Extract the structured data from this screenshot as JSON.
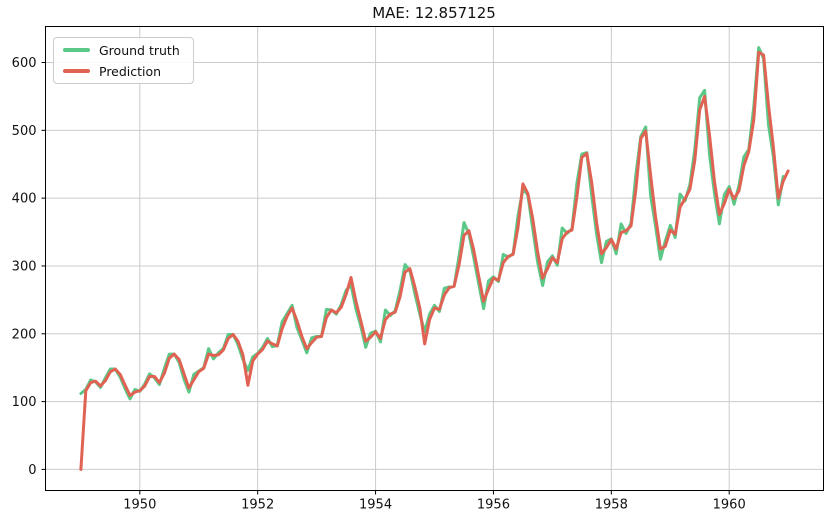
{
  "chart_data": {
    "type": "line",
    "title": "MAE: 12.857125",
    "xlabel": "",
    "ylabel": "",
    "grid": true,
    "x_axis": {
      "start": "1949-01",
      "unit": "months since 1949-01",
      "tick_positions_months": [
        12,
        36,
        60,
        84,
        108,
        132
      ],
      "tick_labels": [
        "1950",
        "1952",
        "1954",
        "1956",
        "1958",
        "1960"
      ],
      "xlim_months": [
        -7.2,
        151.2
      ]
    },
    "y_axis": {
      "ticks": [
        0,
        100,
        200,
        300,
        400,
        500,
        600
      ],
      "tick_labels": [
        "0",
        "100",
        "200",
        "300",
        "400",
        "500",
        "600"
      ],
      "ylim": [
        -31.1,
        653.1
      ]
    },
    "legend": {
      "position": "upper-left",
      "entries": [
        "Ground truth",
        "Prediction"
      ]
    },
    "colors": {
      "ground_truth": "#5cc887",
      "prediction": "#e06253",
      "grid": "#cbcbcb",
      "spine": "#000000",
      "text": "#111111"
    },
    "series": [
      {
        "name": "Ground truth",
        "color": "#5cc887",
        "start_month": 0,
        "values": [
          112,
          118,
          132,
          129,
          121,
          135,
          148,
          148,
          136,
          119,
          104,
          118,
          115,
          126,
          141,
          135,
          125,
          149,
          170,
          170,
          158,
          133,
          114,
          140,
          145,
          150,
          178,
          163,
          172,
          178,
          199,
          199,
          184,
          162,
          146,
          166,
          171,
          180,
          193,
          181,
          183,
          218,
          230,
          242,
          209,
          191,
          172,
          194,
          196,
          196,
          236,
          235,
          229,
          243,
          264,
          272,
          237,
          211,
          180,
          201,
          204,
          188,
          235,
          227,
          234,
          264,
          302,
          293,
          259,
          229,
          203,
          229,
          242,
          233,
          267,
          269,
          270,
          315,
          364,
          347,
          312,
          274,
          237,
          278,
          284,
          277,
          317,
          313,
          318,
          374,
          413,
          405,
          355,
          306,
          271,
          306,
          315,
          301,
          356,
          348,
          355,
          422,
          465,
          467,
          404,
          347,
          305,
          336,
          340,
          318,
          362,
          348,
          363,
          435,
          491,
          505,
          404,
          359,
          310,
          337,
          360,
          342,
          406,
          396,
          420,
          472,
          548,
          559,
          463,
          407,
          362,
          405,
          417,
          391,
          419,
          461,
          472,
          535,
          622,
          606,
          508,
          461,
          390,
          432
        ]
      },
      {
        "name": "Prediction",
        "color": "#e06253",
        "start_month": 0,
        "values": [
          0,
          116,
          128,
          130,
          123,
          131,
          144,
          148,
          140,
          124,
          109,
          114,
          116,
          123,
          137,
          137,
          128,
          142,
          164,
          170,
          162,
          141,
          120,
          132,
          144,
          149,
          170,
          168,
          169,
          176,
          193,
          199,
          189,
          169,
          124,
          160,
          170,
          177,
          189,
          185,
          182,
          208,
          226,
          238,
          219,
          196,
          178,
          187,
          195,
          196,
          224,
          235,
          231,
          239,
          258,
          283,
          248,
          219,
          189,
          195,
          203,
          193,
          221,
          229,
          232,
          255,
          291,
          296,
          269,
          238,
          185,
          221,
          238,
          236,
          257,
          268,
          270,
          302,
          345,
          352,
          323,
          285,
          248,
          266,
          282,
          279,
          305,
          314,
          317,
          357,
          421,
          407,
          370,
          321,
          282,
          296,
          312,
          305,
          340,
          350,
          353,
          402,
          460,
          466,
          423,
          364,
          318,
          327,
          339,
          325,
          349,
          352,
          359,
          413,
          488,
          499,
          434,
          373,
          325,
          329,
          353,
          347,
          387,
          399,
          413,
          456,
          530,
          550,
          492,
          424,
          376,
          392,
          413,
          399,
          411,
          448,
          469,
          516,
          615,
          611,
          537,
          475,
          400,
          425,
          440
        ]
      }
    ]
  }
}
